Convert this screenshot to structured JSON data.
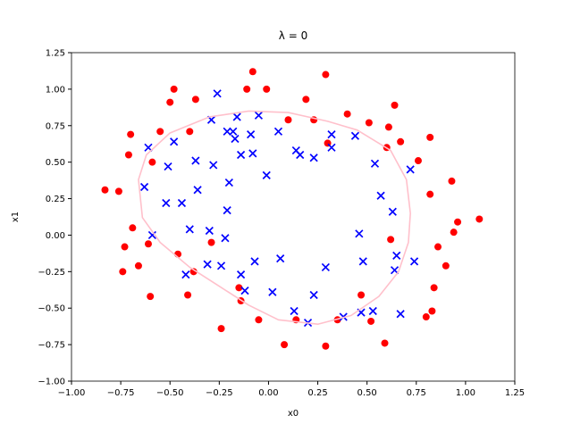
{
  "chart_data": {
    "type": "scatter",
    "title": "λ = 0",
    "x_label": "x0",
    "y_label": "x1",
    "xlim": [
      -1.0,
      1.25
    ],
    "ylim": [
      -1.0,
      1.25
    ],
    "xticks": [
      {
        "value": -1.0,
        "label": "−1.00"
      },
      {
        "value": -0.75,
        "label": "−0.75"
      },
      {
        "value": -0.5,
        "label": "−0.50"
      },
      {
        "value": -0.25,
        "label": "−0.25"
      },
      {
        "value": 0,
        "label": "0.00"
      },
      {
        "value": 0.25,
        "label": "0.25"
      },
      {
        "value": 0.5,
        "label": "0.50"
      },
      {
        "value": 0.75,
        "label": "0.75"
      },
      {
        "value": 1.0,
        "label": "1.00"
      },
      {
        "value": 1.25,
        "label": "1.25"
      }
    ],
    "yticks": [
      {
        "value": -1.0,
        "label": "−1.00"
      },
      {
        "value": -0.75,
        "label": "−0.75"
      },
      {
        "value": -0.5,
        "label": "−0.50"
      },
      {
        "value": -0.25,
        "label": "−0.25"
      },
      {
        "value": 0,
        "label": "0.00"
      },
      {
        "value": 0.25,
        "label": "0.25"
      },
      {
        "value": 0.5,
        "label": "0.50"
      },
      {
        "value": 0.75,
        "label": "0.75"
      },
      {
        "value": 1.0,
        "label": "1.00"
      },
      {
        "value": 1.25,
        "label": "1.25"
      }
    ],
    "series": [
      {
        "marker": "o",
        "color": "#ff0000",
        "x": [
          -0.83,
          -0.76,
          -0.7,
          -0.71,
          -0.69,
          -0.73,
          -0.74,
          -0.66,
          -0.59,
          -0.61,
          -0.55,
          -0.6,
          -0.5,
          -0.48,
          -0.46,
          -0.4,
          -0.38,
          -0.41,
          -0.37,
          -0.29,
          -0.24,
          -0.15,
          -0.14,
          -0.11,
          -0.08,
          -0.05,
          -0.01,
          0.1,
          0.08,
          0.14,
          0.19,
          0.23,
          0.29,
          0.3,
          0.29,
          0.35,
          0.4,
          0.47,
          0.51,
          0.52,
          0.61,
          0.6,
          0.64,
          0.67,
          0.59,
          0.62,
          0.76,
          0.82,
          0.82,
          0.86,
          0.84,
          0.83,
          0.8,
          0.9,
          0.93,
          0.94,
          0.96,
          1.07
        ],
        "y": [
          0.31,
          0.3,
          0.69,
          0.55,
          0.05,
          -0.08,
          -0.25,
          -0.21,
          0.5,
          -0.06,
          0.71,
          -0.42,
          0.91,
          1.0,
          -0.13,
          0.71,
          -0.25,
          -0.41,
          0.93,
          -0.05,
          -0.64,
          -0.36,
          -0.45,
          1.0,
          1.12,
          -0.58,
          1.0,
          0.79,
          -0.75,
          -0.58,
          0.93,
          0.79,
          1.1,
          0.63,
          -0.76,
          -0.58,
          0.83,
          -0.41,
          0.77,
          -0.59,
          0.74,
          0.6,
          0.89,
          0.64,
          -0.74,
          -0.03,
          0.51,
          0.67,
          0.28,
          -0.08,
          -0.36,
          -0.52,
          -0.56,
          -0.21,
          0.37,
          0.02,
          0.09,
          0.11
        ]
      },
      {
        "marker": "x",
        "color": "#0000ff",
        "x": [
          -0.61,
          -0.63,
          -0.52,
          -0.51,
          -0.48,
          -0.44,
          -0.36,
          -0.37,
          -0.59,
          -0.4,
          -0.42,
          -0.3,
          -0.31,
          -0.28,
          -0.29,
          -0.26,
          -0.24,
          -0.22,
          -0.21,
          -0.2,
          -0.21,
          -0.17,
          -0.18,
          -0.16,
          -0.14,
          -0.14,
          -0.12,
          -0.09,
          -0.08,
          -0.07,
          -0.05,
          -0.01,
          0.02,
          0.05,
          0.06,
          0.14,
          0.16,
          0.13,
          0.2,
          0.23,
          0.23,
          0.29,
          0.32,
          0.32,
          0.38,
          0.44,
          0.46,
          0.47,
          0.48,
          0.53,
          0.54,
          0.57,
          0.63,
          0.64,
          0.65,
          0.67,
          0.72,
          0.74
        ],
        "y": [
          0.6,
          0.33,
          0.22,
          0.47,
          0.64,
          0.22,
          0.31,
          0.51,
          0.0,
          0.04,
          -0.27,
          0.03,
          -0.2,
          0.48,
          0.79,
          0.97,
          -0.21,
          -0.02,
          0.17,
          0.36,
          0.71,
          0.66,
          0.71,
          0.81,
          0.55,
          -0.27,
          -0.38,
          0.69,
          0.56,
          -0.18,
          0.82,
          0.41,
          -0.39,
          0.71,
          -0.16,
          0.58,
          0.55,
          -0.52,
          -0.6,
          0.53,
          -0.41,
          -0.22,
          0.69,
          0.6,
          -0.56,
          0.68,
          0.01,
          -0.53,
          -0.18,
          -0.52,
          0.49,
          0.27,
          0.16,
          -0.24,
          -0.14,
          -0.54,
          0.45,
          -0.18
        ]
      }
    ],
    "boundary": {
      "color": "#ffc0cb",
      "x": [
        -0.1,
        0.1,
        0.3,
        0.45,
        0.62,
        0.7,
        0.72,
        0.71,
        0.66,
        0.56,
        0.42,
        0.25,
        0.05,
        -0.1,
        -0.25,
        -0.4,
        -0.55,
        -0.64,
        -0.66,
        -0.62,
        -0.5,
        -0.3,
        -0.1
      ],
      "y": [
        0.85,
        0.84,
        0.78,
        0.72,
        0.58,
        0.38,
        0.15,
        -0.05,
        -0.25,
        -0.42,
        -0.55,
        -0.61,
        -0.58,
        -0.48,
        -0.35,
        -0.22,
        -0.05,
        0.12,
        0.38,
        0.55,
        0.7,
        0.81,
        0.85
      ]
    }
  }
}
